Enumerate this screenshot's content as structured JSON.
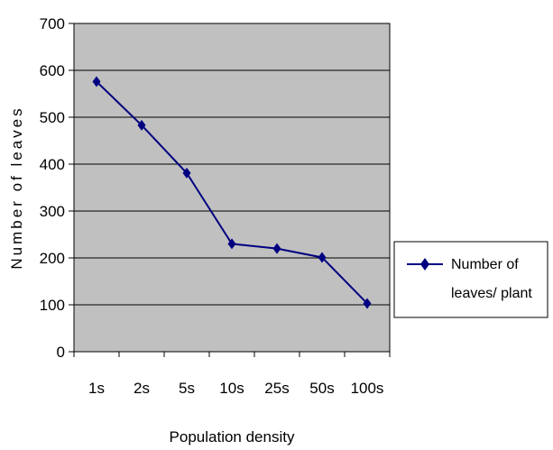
{
  "chart_data": {
    "type": "line",
    "categories": [
      "1s",
      "2s",
      "5s",
      "10s",
      "25s",
      "50s",
      "100s"
    ],
    "series": [
      {
        "name": "Number of leaves/ plant",
        "values": [
          576,
          483,
          381,
          230,
          220,
          201,
          103
        ],
        "color": "#000080",
        "marker": "diamond"
      }
    ],
    "xlabel": "Population density",
    "ylabel": "Number of leaves",
    "ylim": [
      0,
      700
    ],
    "yticks": [
      0,
      100,
      200,
      300,
      400,
      500,
      600,
      700
    ],
    "grid": "horizontal",
    "plot_background": "#c0c0c0",
    "legend": {
      "placement": "right",
      "lines": [
        "Number of",
        "leaves/ plant"
      ]
    }
  }
}
